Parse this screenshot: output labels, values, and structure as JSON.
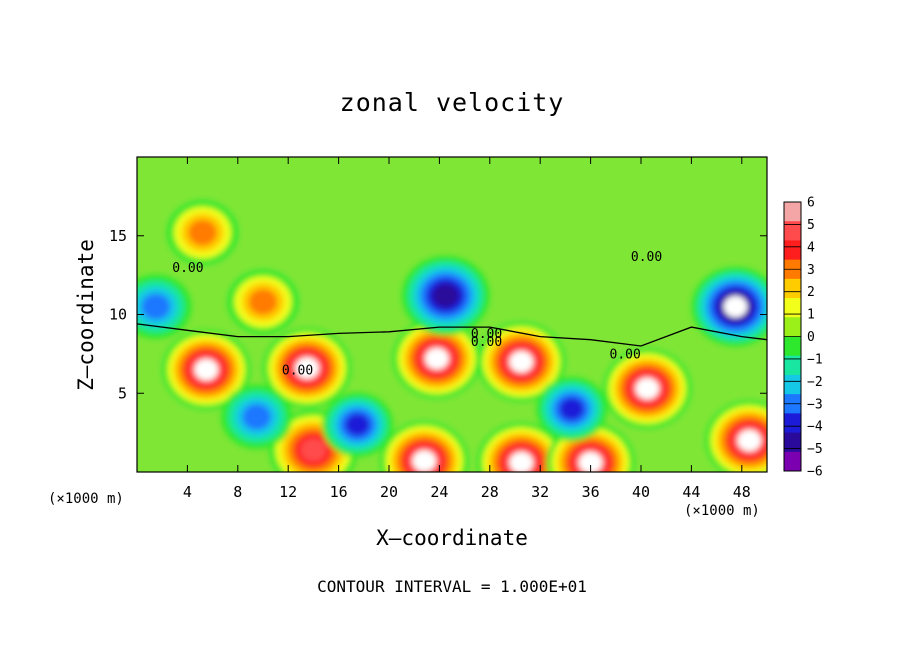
{
  "chart_data": {
    "type": "heatmap",
    "title": "zonal velocity",
    "xlabel": "X–coordinate",
    "ylabel": "Z–coordinate",
    "x_units_left": "(×1000 m)",
    "x_units_right": "(×1000 m)",
    "footer": "CONTOUR INTERVAL = 1.000E+01",
    "xlim": [
      0,
      50
    ],
    "ylim": [
      0,
      20
    ],
    "x_ticks": [
      "4",
      "8",
      "12",
      "16",
      "20",
      "24",
      "28",
      "32",
      "36",
      "40",
      "44",
      "48"
    ],
    "y_ticks": [
      "5",
      "10",
      "15"
    ],
    "contour_labels": [
      "0.00",
      "0.00",
      "0.00",
      "0.00",
      "0.00",
      "0.00"
    ],
    "colorbar": {
      "range": [
        -6,
        6
      ],
      "ticks": [
        "6",
        "5",
        "4",
        "3",
        "2",
        "1",
        "0",
        "−1",
        "−2",
        "−3",
        "−4",
        "−5",
        "−6"
      ],
      "colors": [
        "#f4a6a6",
        "#ff4b4b",
        "#ff1e1e",
        "#ff7b00",
        "#ffcc00",
        "#f2ff1a",
        "#9cf01a",
        "#2ee82e",
        "#19e6a0",
        "#14c8e6",
        "#1c78ff",
        "#1c1cd8",
        "#2a0a9a",
        "#7a00b0"
      ]
    },
    "features": [
      {
        "kind": "max",
        "x": 5.5,
        "z": 6.5,
        "value": 6
      },
      {
        "kind": "max",
        "x": 13.5,
        "z": 6.6,
        "value": 6
      },
      {
        "kind": "max",
        "x": 23.8,
        "z": 7.2,
        "value": 6
      },
      {
        "kind": "max",
        "x": 30.5,
        "z": 7.0,
        "value": 6
      },
      {
        "kind": "max",
        "x": 40.5,
        "z": 5.3,
        "value": 6
      },
      {
        "kind": "max",
        "x": 48.6,
        "z": 2.0,
        "value": 6
      },
      {
        "kind": "max",
        "x": 22.8,
        "z": 0.7,
        "value": 6
      },
      {
        "kind": "max",
        "x": 30.5,
        "z": 0.6,
        "value": 6
      },
      {
        "kind": "max",
        "x": 36.0,
        "z": 0.6,
        "value": 6
      },
      {
        "kind": "max",
        "x": 14.0,
        "z": 1.4,
        "value": 5
      },
      {
        "kind": "max",
        "x": 5.2,
        "z": 15.2,
        "value": 3
      },
      {
        "kind": "max",
        "x": 10.0,
        "z": 10.8,
        "value": 3
      },
      {
        "kind": "min",
        "x": 24.5,
        "z": 11.2,
        "value": -5
      },
      {
        "kind": "min",
        "x": 47.5,
        "z": 10.5,
        "value": -6
      },
      {
        "kind": "min",
        "x": 34.5,
        "z": 4.0,
        "value": -4
      },
      {
        "kind": "min",
        "x": 17.5,
        "z": 3.0,
        "value": -4
      },
      {
        "kind": "min",
        "x": 9.5,
        "z": 3.5,
        "value": -3
      },
      {
        "kind": "min",
        "x": 1.5,
        "z": 10.5,
        "value": -3
      }
    ]
  }
}
